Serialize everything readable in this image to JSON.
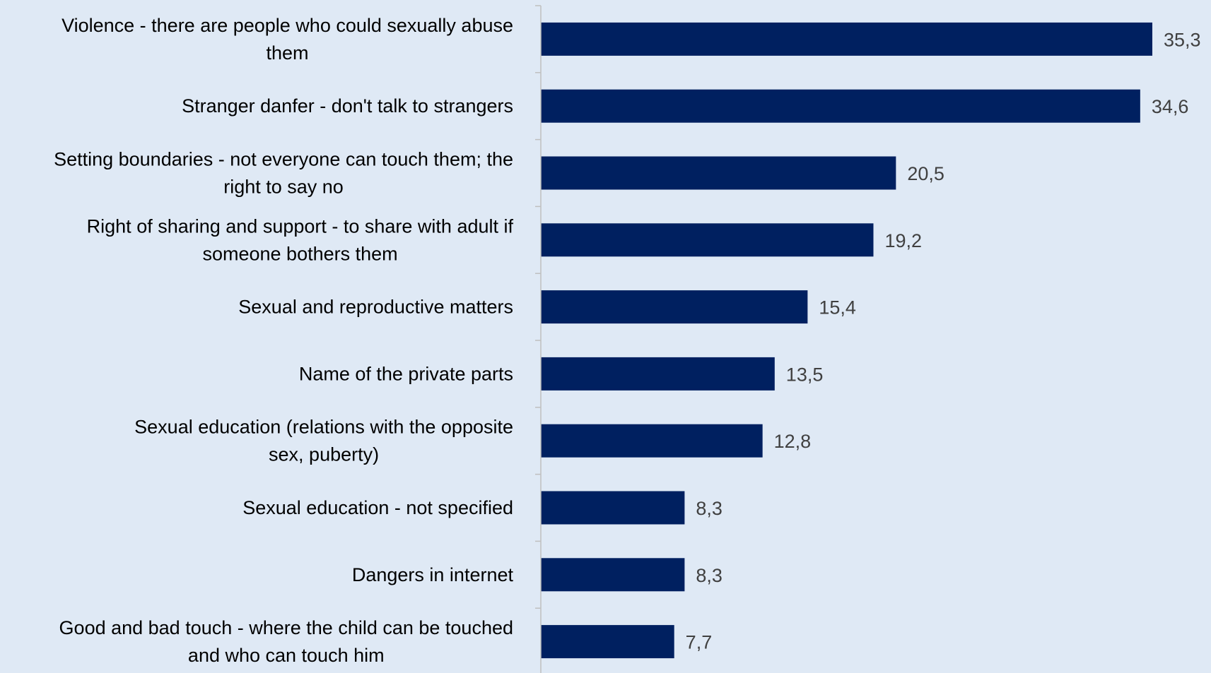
{
  "chart_data": {
    "type": "bar",
    "orientation": "horizontal",
    "categories": [
      [
        "Violence - there are people who could sexually abuse",
        "them"
      ],
      [
        "Stranger danfer - don't talk to strangers"
      ],
      [
        "Setting boundaries - not everyone can touch them; the",
        "right to say no"
      ],
      [
        "Right of sharing and support - to share with adult if",
        "someone bothers them"
      ],
      [
        "Sexual and reproductive matters"
      ],
      [
        "Name of the private parts"
      ],
      [
        "Sexual education (relations with the opposite",
        "sex, puberty)"
      ],
      [
        "Sexual education - not specified"
      ],
      [
        "Dangers in internet"
      ],
      [
        "Good and bad touch - where the child can be touched",
        "and who can touch him"
      ]
    ],
    "values": [
      35.3,
      34.6,
      20.5,
      19.2,
      15.4,
      13.5,
      12.8,
      8.3,
      8.3,
      7.7
    ],
    "value_labels": [
      "35,3",
      "34,6",
      "20,5",
      "19,2",
      "15,4",
      "13,5",
      "12,8",
      "8,3",
      "8,3",
      "7,7"
    ],
    "xlim": [
      0,
      36.8
    ],
    "title": "",
    "xlabel": "",
    "ylabel": "",
    "grid": false,
    "legend": "none",
    "colors": {
      "bar": "#002060",
      "background": "#dfe9f5",
      "axis": "#bfbfbf",
      "category_text": "#000000",
      "value_text": "#404040"
    }
  }
}
